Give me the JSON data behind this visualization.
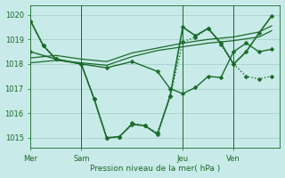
{
  "bg_color": "#c8eae8",
  "plot_bg": "#c8eae8",
  "grid_color": "#a0ccc8",
  "line_color": "#1a6b2a",
  "xlabel": "Pression niveau de la mer( hPa )",
  "ylim": [
    1014.6,
    1020.4
  ],
  "yticks": [
    1015,
    1016,
    1017,
    1018,
    1019,
    1020
  ],
  "xtick_labels": [
    "Mer",
    "Sam",
    "Jeu",
    "Ven"
  ],
  "xtick_positions": [
    0,
    24,
    72,
    96
  ],
  "xlim": [
    0,
    118
  ],
  "vlines": [
    24,
    72,
    96
  ],
  "series": [
    {
      "x": [
        0,
        6,
        12,
        24,
        30,
        36,
        42,
        48,
        54,
        60,
        66,
        72,
        78,
        84,
        90,
        96,
        102,
        108,
        114
      ],
      "y": [
        1019.75,
        1018.75,
        1018.2,
        1018.0,
        1016.6,
        1015.0,
        1015.05,
        1015.6,
        1015.5,
        1015.2,
        1016.7,
        1018.9,
        1019.1,
        1019.45,
        1018.8,
        1018.0,
        1017.5,
        1017.4,
        1017.5
      ],
      "linestyle": "dotted",
      "linewidth": 1.0,
      "marker": true,
      "markersize": 2.5
    },
    {
      "x": [
        0,
        12,
        24,
        36,
        48,
        60,
        72,
        84,
        96,
        108,
        114
      ],
      "y": [
        1018.25,
        1018.35,
        1018.2,
        1018.1,
        1018.45,
        1018.65,
        1018.85,
        1019.0,
        1019.1,
        1019.3,
        1019.55
      ],
      "linestyle": "solid",
      "linewidth": 0.9,
      "marker": false,
      "markersize": 0
    },
    {
      "x": [
        0,
        12,
        24,
        36,
        48,
        60,
        72,
        84,
        96,
        108,
        114
      ],
      "y": [
        1018.05,
        1018.15,
        1018.05,
        1017.95,
        1018.3,
        1018.55,
        1018.7,
        1018.85,
        1018.95,
        1019.1,
        1019.35
      ],
      "linestyle": "solid",
      "linewidth": 0.9,
      "marker": false,
      "markersize": 0
    },
    {
      "x": [
        0,
        12,
        24,
        36,
        48,
        60,
        66,
        72,
        78,
        84,
        90,
        96,
        102,
        108,
        114
      ],
      "y": [
        1018.5,
        1018.2,
        1018.0,
        1017.85,
        1018.1,
        1017.7,
        1017.0,
        1016.8,
        1017.05,
        1017.5,
        1017.45,
        1018.5,
        1018.85,
        1018.5,
        1018.6
      ],
      "linestyle": "solid",
      "linewidth": 1.0,
      "marker": true,
      "markersize": 2.5
    },
    {
      "x": [
        0,
        6,
        12,
        24,
        30,
        36,
        42,
        48,
        54,
        60,
        66,
        72,
        78,
        84,
        90,
        96,
        102,
        108,
        114
      ],
      "y": [
        1019.75,
        1018.75,
        1018.2,
        1018.0,
        1016.6,
        1015.0,
        1015.05,
        1015.55,
        1015.5,
        1015.15,
        1016.7,
        1019.5,
        1019.15,
        1019.45,
        1018.85,
        1018.0,
        1018.5,
        1019.25,
        1019.95
      ],
      "linestyle": "solid",
      "linewidth": 1.2,
      "marker": true,
      "markersize": 2.5
    }
  ]
}
